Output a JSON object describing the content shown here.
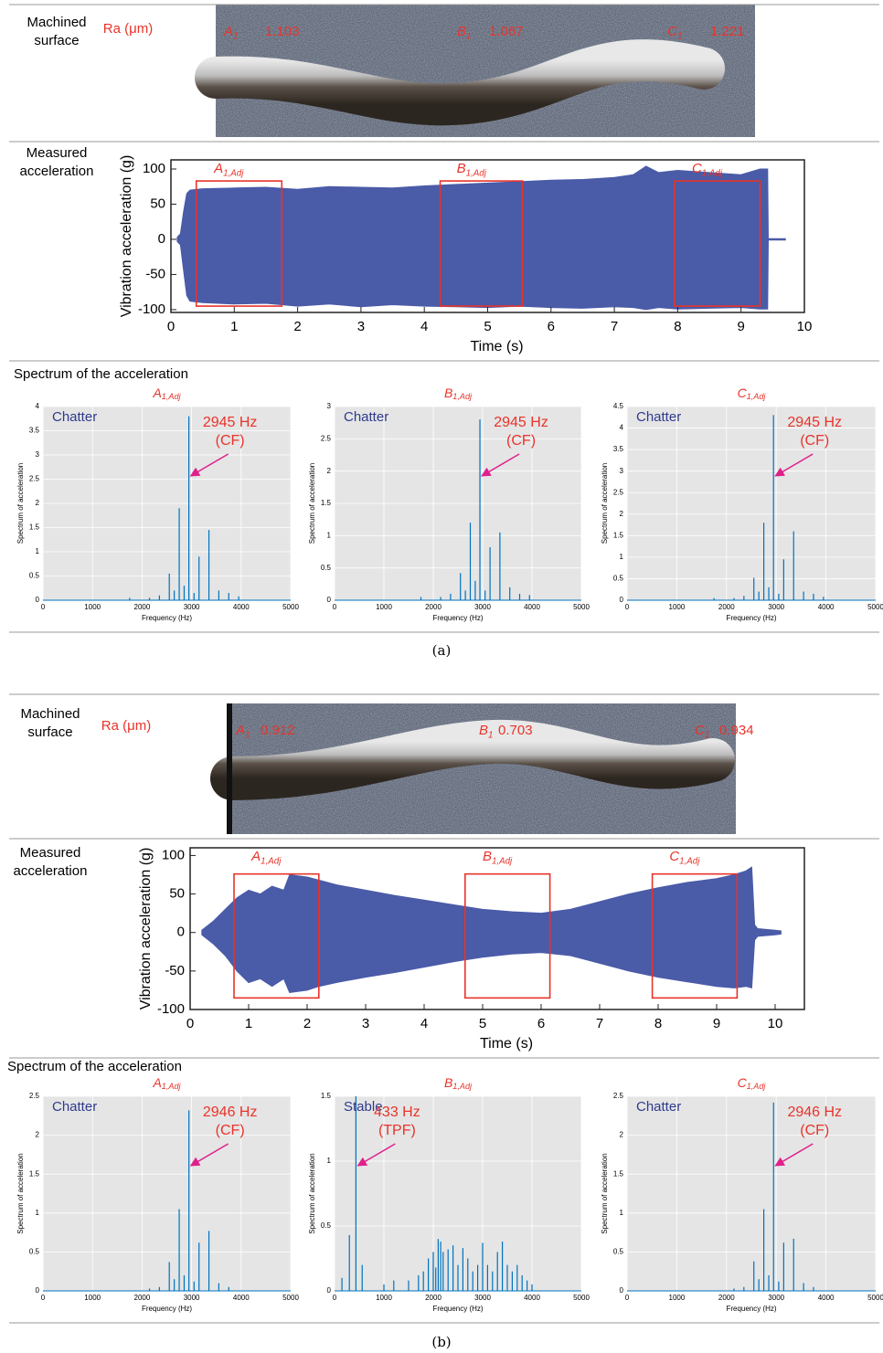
{
  "panels": [
    {
      "caption": "(a)",
      "surface_title": [
        "Machined",
        "surface"
      ],
      "ra_label": "Ra (μm)",
      "surface_points": [
        {
          "name": "A",
          "sub": "1",
          "value": 1.103
        },
        {
          "name": "B",
          "sub": "1",
          "value": 1.067
        },
        {
          "name": "C",
          "sub": "1",
          "value": 1.221
        }
      ],
      "accel_title": [
        "Measured",
        "acceleration"
      ],
      "spectrum_title": "Spectrum of the acceleration"
    },
    {
      "caption": "(b)",
      "surface_title": [
        "Machined",
        "surface"
      ],
      "ra_label": "Ra (μm)",
      "surface_points": [
        {
          "name": "A",
          "sub": "1",
          "value": 0.912
        },
        {
          "name": "B",
          "sub": "1",
          "value": 0.703
        },
        {
          "name": "C",
          "sub": "1",
          "value": 0.934
        }
      ],
      "accel_title": [
        "Measured",
        "acceleration"
      ],
      "spectrum_title": "Spectrum of the acceleration"
    }
  ],
  "chart_data": [
    {
      "type": "envelope",
      "xlabel": "Time (s)",
      "ylabel": "Vibration acceleration (g)",
      "color": "#4a5ba8",
      "xlim": [
        0,
        10
      ],
      "ylim": [
        -104,
        113
      ],
      "xticks": [
        0,
        1,
        2,
        3,
        4,
        5,
        6,
        7,
        8,
        9,
        10
      ],
      "yticks": [
        -100,
        -50,
        0,
        50,
        100
      ],
      "x": [
        0.1,
        0.15,
        0.2,
        0.25,
        0.3,
        0.5,
        1,
        1.5,
        2,
        2.5,
        3,
        3.5,
        4,
        4.5,
        5,
        5.5,
        6,
        6.5,
        7,
        7.3,
        7.5,
        7.7,
        8,
        8.5,
        9,
        9.3,
        9.42,
        9.43,
        9.7
      ],
      "upper": [
        3,
        8,
        40,
        65,
        70,
        72,
        73,
        74,
        71,
        75,
        74,
        73,
        76,
        78,
        80,
        82,
        84,
        85,
        88,
        92,
        104,
        95,
        98,
        95,
        92,
        100,
        100,
        1,
        1
      ],
      "lower": [
        -3,
        -8,
        -45,
        -80,
        -88,
        -90,
        -92,
        -91,
        -95,
        -92,
        -96,
        -93,
        -95,
        -96,
        -97,
        -95,
        -97,
        -98,
        -96,
        -97,
        -100,
        -97,
        -99,
        -98,
        -97,
        -99,
        -99,
        -1,
        -1
      ],
      "boxes": [
        {
          "label": "A",
          "sub": "1,Adj",
          "x": [
            0.4,
            1.75
          ],
          "y": [
            -95,
            83
          ]
        },
        {
          "label": "B",
          "sub": "1,Adj",
          "x": [
            4.25,
            5.55
          ],
          "y": [
            -95,
            83
          ]
        },
        {
          "label": "C",
          "sub": "1,Adj",
          "x": [
            7.95,
            9.3
          ],
          "y": [
            -95,
            83
          ]
        }
      ]
    },
    {
      "type": "stem",
      "title": "A",
      "title_sub": "1,Adj",
      "xlabel": "Frequency (Hz)",
      "ylabel": "Spectrum of acceleration",
      "color": "#0072bd",
      "grid": true,
      "state": "Chatter",
      "peak_label": "2945 Hz",
      "peak_note": "(CF)",
      "xlim": [
        0,
        5000
      ],
      "ylim": [
        0,
        4
      ],
      "xticks": [
        0,
        1000,
        2000,
        3000,
        4000,
        5000
      ],
      "yticks": [
        0,
        0.5,
        1,
        1.5,
        2,
        2.5,
        3,
        3.5,
        4
      ],
      "x": [
        1750,
        2150,
        2350,
        2550,
        2650,
        2750,
        2850,
        2945,
        3050,
        3150,
        3350,
        3550,
        3750,
        3950
      ],
      "values": [
        0.05,
        0.05,
        0.1,
        0.55,
        0.2,
        1.9,
        0.3,
        3.8,
        0.15,
        0.9,
        1.45,
        0.2,
        0.15,
        0.08
      ]
    },
    {
      "type": "stem",
      "title": "B",
      "title_sub": "1,Adj",
      "xlabel": "Frequency (Hz)",
      "ylabel": "Spectrum of acceleration",
      "color": "#0072bd",
      "grid": true,
      "state": "Chatter",
      "peak_label": "2945 Hz",
      "peak_note": "(CF)",
      "xlim": [
        0,
        5000
      ],
      "ylim": [
        0,
        3
      ],
      "xticks": [
        0,
        1000,
        2000,
        3000,
        4000,
        5000
      ],
      "yticks": [
        0,
        0.5,
        1,
        1.5,
        2,
        2.5,
        3
      ],
      "x": [
        1750,
        2150,
        2350,
        2550,
        2650,
        2750,
        2850,
        2945,
        3050,
        3150,
        3350,
        3550,
        3750,
        3950
      ],
      "values": [
        0.05,
        0.05,
        0.1,
        0.42,
        0.15,
        1.2,
        0.3,
        2.8,
        0.15,
        0.82,
        1.05,
        0.2,
        0.1,
        0.08
      ]
    },
    {
      "type": "stem",
      "title": "C",
      "title_sub": "1,Adj",
      "xlabel": "Frequency (Hz)",
      "ylabel": "Spectrum of acceleration",
      "color": "#0072bd",
      "grid": true,
      "state": "Chatter",
      "peak_label": "2945 Hz",
      "peak_note": "(CF)",
      "xlim": [
        0,
        5000
      ],
      "ylim": [
        0,
        4.5
      ],
      "xticks": [
        0,
        1000,
        2000,
        3000,
        4000,
        5000
      ],
      "yticks": [
        0,
        0.5,
        1,
        1.5,
        2,
        2.5,
        3,
        3.5,
        4,
        4.5
      ],
      "x": [
        1750,
        2150,
        2350,
        2550,
        2650,
        2750,
        2850,
        2945,
        3050,
        3150,
        3350,
        3550,
        3750,
        3950
      ],
      "values": [
        0.05,
        0.05,
        0.1,
        0.52,
        0.2,
        1.8,
        0.3,
        4.3,
        0.15,
        0.95,
        1.6,
        0.2,
        0.15,
        0.08
      ]
    },
    {
      "type": "envelope",
      "xlabel": "Time (s)",
      "ylabel": "Vibration acceleration (g)",
      "color": "#4a5ba8",
      "xlim": [
        0,
        10.5
      ],
      "ylim": [
        -100,
        110
      ],
      "xticks": [
        0,
        1,
        2,
        3,
        4,
        5,
        6,
        7,
        8,
        9,
        10
      ],
      "yticks": [
        -100,
        -50,
        0,
        50,
        100
      ],
      "x": [
        0.2,
        0.4,
        0.6,
        0.8,
        1,
        1.2,
        1.4,
        1.6,
        1.7,
        2,
        2.2,
        2.5,
        3,
        3.5,
        4,
        4.5,
        5,
        5.5,
        6,
        6.5,
        7,
        7.5,
        8,
        8.5,
        9,
        9.3,
        9.5,
        9.6,
        9.65,
        9.7,
        10,
        10.1
      ],
      "upper": [
        3,
        15,
        30,
        45,
        55,
        50,
        60,
        55,
        75,
        72,
        68,
        62,
        55,
        48,
        42,
        36,
        30,
        27,
        25,
        30,
        40,
        50,
        58,
        65,
        70,
        75,
        80,
        85,
        10,
        5,
        3,
        2
      ],
      "lower": [
        -3,
        -15,
        -30,
        -50,
        -65,
        -60,
        -70,
        -60,
        -78,
        -75,
        -70,
        -65,
        -58,
        -52,
        -45,
        -38,
        -32,
        -28,
        -26,
        -30,
        -40,
        -50,
        -58,
        -64,
        -70,
        -72,
        -70,
        -72,
        -10,
        -5,
        -3,
        -2
      ],
      "boxes": [
        {
          "label": "A",
          "sub": "1,Adj",
          "x": [
            0.75,
            2.2
          ],
          "y": [
            -85,
            76
          ]
        },
        {
          "label": "B",
          "sub": "1,Adj",
          "x": [
            4.7,
            6.15
          ],
          "y": [
            -85,
            76
          ]
        },
        {
          "label": "C",
          "sub": "1,Adj",
          "x": [
            7.9,
            9.35
          ],
          "y": [
            -85,
            76
          ]
        }
      ]
    },
    {
      "type": "stem",
      "title": "A",
      "title_sub": "1,Adj",
      "xlabel": "Frequency (Hz)",
      "ylabel": "Spectrum of acceleration",
      "color": "#0072bd",
      "grid": true,
      "state": "Chatter",
      "peak_label": "2946 Hz",
      "peak_note": "(CF)",
      "xlim": [
        0,
        5000
      ],
      "ylim": [
        0,
        2.5
      ],
      "xticks": [
        0,
        1000,
        2000,
        3000,
        4000,
        5000
      ],
      "yticks": [
        0,
        0.5,
        1,
        1.5,
        2,
        2.5
      ],
      "x": [
        2150,
        2350,
        2550,
        2650,
        2750,
        2850,
        2946,
        3050,
        3150,
        3350,
        3550,
        3750
      ],
      "values": [
        0.03,
        0.05,
        0.37,
        0.15,
        1.05,
        0.2,
        2.32,
        0.12,
        0.62,
        0.77,
        0.1,
        0.05
      ]
    },
    {
      "type": "stem",
      "title": "B",
      "title_sub": "1,Adj",
      "xlabel": "Frequency (Hz)",
      "ylabel": "Spectrum of acceleration",
      "color": "#0072bd",
      "grid": true,
      "state": "Stable",
      "peak_label": "433 Hz",
      "peak_note": "(TPF)",
      "xlim": [
        0,
        5000
      ],
      "ylim": [
        0,
        1.5
      ],
      "xticks": [
        0,
        1000,
        2000,
        3000,
        4000,
        5000
      ],
      "yticks": [
        0,
        0.5,
        1,
        1.5
      ],
      "x": [
        150,
        300,
        433,
        560,
        1000,
        1200,
        1500,
        1700,
        1800,
        1900,
        2000,
        2050,
        2100,
        2150,
        2200,
        2300,
        2400,
        2500,
        2600,
        2700,
        2800,
        2900,
        3000,
        3100,
        3200,
        3300,
        3400,
        3500,
        3600,
        3700,
        3800,
        3900,
        4000
      ],
      "values": [
        0.1,
        0.43,
        1.5,
        0.2,
        0.05,
        0.08,
        0.08,
        0.12,
        0.15,
        0.25,
        0.3,
        0.18,
        0.4,
        0.38,
        0.3,
        0.32,
        0.35,
        0.2,
        0.33,
        0.25,
        0.15,
        0.2,
        0.37,
        0.2,
        0.15,
        0.3,
        0.38,
        0.2,
        0.15,
        0.2,
        0.12,
        0.08,
        0.05
      ]
    },
    {
      "type": "stem",
      "title": "C",
      "title_sub": "1,Adj",
      "xlabel": "Frequency (Hz)",
      "ylabel": "Spectrum of acceleration",
      "color": "#0072bd",
      "grid": true,
      "state": "Chatter",
      "peak_label": "2946 Hz",
      "peak_note": "(CF)",
      "xlim": [
        0,
        5000
      ],
      "ylim": [
        0,
        2.5
      ],
      "xticks": [
        0,
        1000,
        2000,
        3000,
        4000,
        5000
      ],
      "yticks": [
        0,
        0.5,
        1,
        1.5,
        2,
        2.5
      ],
      "x": [
        2150,
        2350,
        2550,
        2650,
        2750,
        2850,
        2946,
        3050,
        3150,
        3350,
        3550,
        3750
      ],
      "values": [
        0.03,
        0.05,
        0.38,
        0.15,
        1.05,
        0.2,
        2.42,
        0.12,
        0.62,
        0.67,
        0.1,
        0.05
      ]
    }
  ]
}
